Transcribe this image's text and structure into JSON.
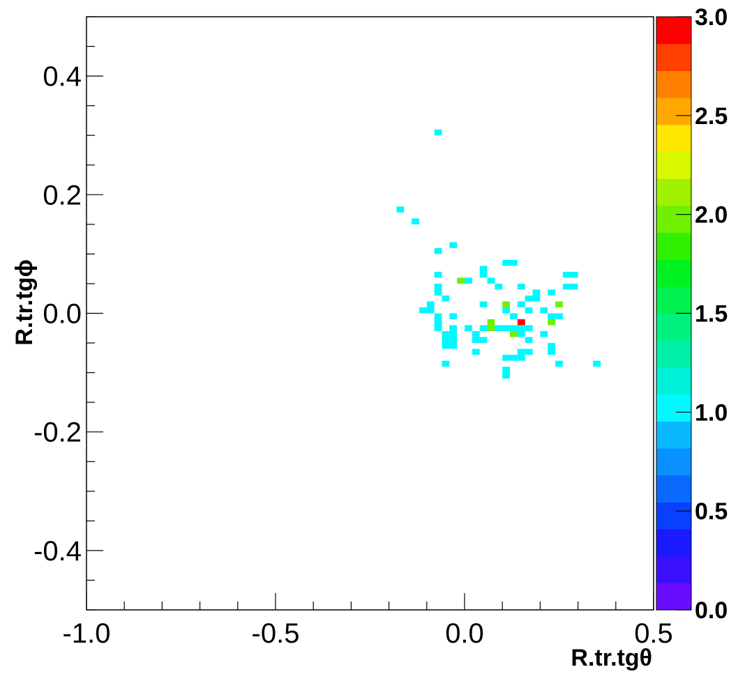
{
  "chart_data": {
    "type": "heatmap",
    "title": "",
    "xlabel": "R.tr.tgθ",
    "ylabel": "R.tr.tgϕ",
    "xlim": [
      -1.0,
      0.5
    ],
    "ylim": [
      -0.5,
      0.5
    ],
    "zlim": [
      0,
      3
    ],
    "x_ticks": [
      "-1.0",
      "-0.5",
      "0.0",
      "0.5"
    ],
    "x_tick_values": [
      -1.0,
      -0.5,
      0.0,
      0.5
    ],
    "y_ticks": [
      "0.4",
      "0.2",
      "0.0",
      "-0.2",
      "-0.4"
    ],
    "y_tick_values": [
      0.4,
      0.2,
      0.0,
      -0.2,
      -0.4
    ],
    "z_ticks": [
      "3.0",
      "2.5",
      "2.0",
      "1.5",
      "1.0",
      "0.5",
      "0.0"
    ],
    "z_tick_values": [
      3.0,
      2.5,
      2.0,
      1.5,
      1.0,
      0.5,
      0.0
    ],
    "bin_width": {
      "x": 0.02,
      "y": 0.01
    },
    "colorbar_colors": [
      "#6a0dff",
      "#3a10ff",
      "#1a1aff",
      "#0a40ff",
      "#0a6aff",
      "#0a90ff",
      "#0ab8ff",
      "#00f8ff",
      "#00f0d8",
      "#00f0a8",
      "#00f080",
      "#00f050",
      "#00f020",
      "#30f000",
      "#70f000",
      "#a0f000",
      "#d8f800",
      "#ffe800",
      "#ffa800",
      "#ff8000",
      "#ff4000",
      "#ff0000"
    ],
    "cells": [
      {
        "x": -0.07,
        "y": 0.305,
        "v": 1
      },
      {
        "x": -0.17,
        "y": 0.175,
        "v": 1
      },
      {
        "x": -0.13,
        "y": 0.155,
        "v": 1
      },
      {
        "x": -0.03,
        "y": 0.115,
        "v": 1
      },
      {
        "x": -0.07,
        "y": 0.105,
        "v": 1
      },
      {
        "x": 0.11,
        "y": 0.085,
        "v": 1
      },
      {
        "x": 0.13,
        "y": 0.085,
        "v": 1
      },
      {
        "x": 0.05,
        "y": 0.075,
        "v": 1
      },
      {
        "x": -0.07,
        "y": 0.065,
        "v": 1
      },
      {
        "x": 0.05,
        "y": 0.065,
        "v": 1
      },
      {
        "x": 0.27,
        "y": 0.065,
        "v": 1
      },
      {
        "x": 0.29,
        "y": 0.065,
        "v": 1
      },
      {
        "x": -0.01,
        "y": 0.055,
        "v": 2
      },
      {
        "x": 0.01,
        "y": 0.055,
        "v": 1
      },
      {
        "x": 0.07,
        "y": 0.055,
        "v": 1
      },
      {
        "x": -0.07,
        "y": 0.045,
        "v": 1
      },
      {
        "x": 0.09,
        "y": 0.045,
        "v": 1
      },
      {
        "x": 0.15,
        "y": 0.045,
        "v": 1
      },
      {
        "x": 0.27,
        "y": 0.045,
        "v": 1
      },
      {
        "x": 0.29,
        "y": 0.045,
        "v": 1
      },
      {
        "x": -0.07,
        "y": 0.035,
        "v": 1
      },
      {
        "x": 0.19,
        "y": 0.035,
        "v": 1
      },
      {
        "x": 0.23,
        "y": 0.035,
        "v": 1
      },
      {
        "x": -0.05,
        "y": 0.025,
        "v": 1
      },
      {
        "x": 0.17,
        "y": 0.025,
        "v": 1
      },
      {
        "x": 0.19,
        "y": 0.025,
        "v": 1
      },
      {
        "x": -0.09,
        "y": 0.015,
        "v": 1
      },
      {
        "x": 0.05,
        "y": 0.015,
        "v": 1
      },
      {
        "x": 0.11,
        "y": 0.015,
        "v": 2
      },
      {
        "x": 0.15,
        "y": 0.015,
        "v": 1
      },
      {
        "x": 0.25,
        "y": 0.015,
        "v": 2
      },
      {
        "x": -0.11,
        "y": 0.005,
        "v": 1
      },
      {
        "x": -0.09,
        "y": 0.005,
        "v": 1
      },
      {
        "x": 0.11,
        "y": 0.005,
        "v": 1
      },
      {
        "x": 0.17,
        "y": 0.005,
        "v": 1
      },
      {
        "x": 0.21,
        "y": 0.005,
        "v": 1
      },
      {
        "x": -0.07,
        "y": -0.005,
        "v": 1
      },
      {
        "x": -0.03,
        "y": -0.005,
        "v": 1
      },
      {
        "x": 0.13,
        "y": -0.005,
        "v": 1
      },
      {
        "x": 0.23,
        "y": -0.005,
        "v": 1
      },
      {
        "x": 0.25,
        "y": -0.005,
        "v": 1
      },
      {
        "x": -0.07,
        "y": -0.015,
        "v": 1
      },
      {
        "x": 0.07,
        "y": -0.015,
        "v": 2
      },
      {
        "x": 0.15,
        "y": -0.015,
        "v": 3
      },
      {
        "x": 0.23,
        "y": -0.015,
        "v": 2
      },
      {
        "x": -0.07,
        "y": -0.025,
        "v": 1
      },
      {
        "x": -0.03,
        "y": -0.025,
        "v": 1
      },
      {
        "x": 0.01,
        "y": -0.025,
        "v": 1
      },
      {
        "x": 0.05,
        "y": -0.025,
        "v": 1
      },
      {
        "x": 0.07,
        "y": -0.025,
        "v": 2
      },
      {
        "x": 0.09,
        "y": -0.025,
        "v": 1
      },
      {
        "x": 0.11,
        "y": -0.025,
        "v": 1
      },
      {
        "x": 0.13,
        "y": -0.025,
        "v": 1
      },
      {
        "x": 0.15,
        "y": -0.025,
        "v": 1
      },
      {
        "x": 0.17,
        "y": -0.025,
        "v": 1
      },
      {
        "x": -0.05,
        "y": -0.035,
        "v": 1
      },
      {
        "x": -0.03,
        "y": -0.035,
        "v": 1
      },
      {
        "x": 0.03,
        "y": -0.035,
        "v": 1
      },
      {
        "x": 0.13,
        "y": -0.035,
        "v": 2
      },
      {
        "x": 0.15,
        "y": -0.035,
        "v": 1
      },
      {
        "x": 0.21,
        "y": -0.035,
        "v": 1
      },
      {
        "x": -0.05,
        "y": -0.045,
        "v": 1
      },
      {
        "x": -0.03,
        "y": -0.045,
        "v": 1
      },
      {
        "x": 0.03,
        "y": -0.045,
        "v": 1
      },
      {
        "x": 0.05,
        "y": -0.045,
        "v": 1
      },
      {
        "x": 0.17,
        "y": -0.045,
        "v": 1
      },
      {
        "x": -0.05,
        "y": -0.055,
        "v": 1
      },
      {
        "x": -0.03,
        "y": -0.055,
        "v": 1
      },
      {
        "x": 0.23,
        "y": -0.055,
        "v": 1
      },
      {
        "x": 0.03,
        "y": -0.065,
        "v": 1
      },
      {
        "x": 0.15,
        "y": -0.065,
        "v": 1
      },
      {
        "x": 0.17,
        "y": -0.065,
        "v": 1
      },
      {
        "x": 0.23,
        "y": -0.065,
        "v": 1
      },
      {
        "x": 0.11,
        "y": -0.075,
        "v": 1
      },
      {
        "x": 0.13,
        "y": -0.075,
        "v": 1
      },
      {
        "x": 0.15,
        "y": -0.075,
        "v": 1
      },
      {
        "x": -0.05,
        "y": -0.085,
        "v": 1
      },
      {
        "x": 0.25,
        "y": -0.085,
        "v": 1
      },
      {
        "x": 0.35,
        "y": -0.085,
        "v": 1
      },
      {
        "x": 0.11,
        "y": -0.095,
        "v": 1
      },
      {
        "x": 0.11,
        "y": -0.105,
        "v": 1
      }
    ]
  }
}
